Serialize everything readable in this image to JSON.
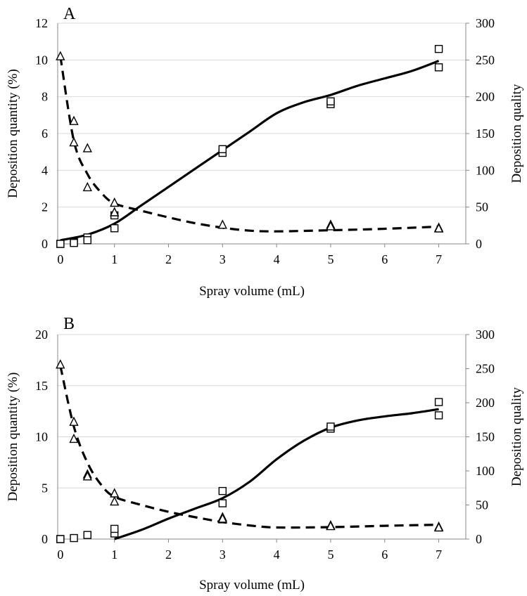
{
  "chart_data": [
    {
      "type": "scatter",
      "panel_label": "A",
      "xlabel": "Spray volume (mL)",
      "ylabel": "Deposition quantity (%)",
      "y2label": "Deposition quality",
      "xlim": [
        -0.05,
        7.5
      ],
      "ylim": [
        0,
        12
      ],
      "y2lim": [
        0,
        300
      ],
      "xticks": [
        "0",
        "1",
        "2",
        "3",
        "4",
        "5",
        "6",
        "7"
      ],
      "yticks": [
        "0",
        "2",
        "4",
        "6",
        "8",
        "10",
        "12"
      ],
      "y2ticks": [
        "0",
        "50",
        "100",
        "150",
        "200",
        "250",
        "300"
      ],
      "grid": true,
      "series": [
        {
          "marker": "square",
          "axis": "left",
          "color": "#000000",
          "points": [
            [
              0,
              0.0
            ],
            [
              0,
              0.0
            ],
            [
              0.25,
              0.1
            ],
            [
              0.25,
              0.05
            ],
            [
              0.5,
              0.35
            ],
            [
              0.5,
              0.2
            ],
            [
              1,
              0.85
            ],
            [
              1,
              1.55
            ],
            [
              3,
              4.95
            ],
            [
              3,
              5.15
            ],
            [
              5,
              7.6
            ],
            [
              5,
              7.75
            ],
            [
              7,
              9.6
            ],
            [
              7,
              10.6
            ]
          ]
        },
        {
          "marker": "triangle",
          "axis": "right",
          "color": "#000000",
          "points": [
            [
              0,
              255
            ],
            [
              0.25,
              167
            ],
            [
              0.25,
              138
            ],
            [
              0.5,
              130
            ],
            [
              0.5,
              77
            ],
            [
              1,
              56
            ],
            [
              1,
              43
            ],
            [
              3,
              26
            ],
            [
              5,
              26
            ],
            [
              5,
              24
            ],
            [
              7,
              22
            ],
            [
              7,
              21
            ]
          ]
        },
        {
          "style": "solid-fit",
          "axis": "left",
          "x": [
            0,
            0.5,
            1,
            1.5,
            2,
            2.5,
            3,
            3.5,
            4,
            4.5,
            5,
            5.5,
            6,
            6.5,
            7
          ],
          "values": [
            0.2,
            0.5,
            1.1,
            2.1,
            3.1,
            4.1,
            5.1,
            6.1,
            7.1,
            7.7,
            8.1,
            8.6,
            9.0,
            9.4,
            9.95
          ]
        },
        {
          "style": "dashed-fit",
          "axis": "right",
          "x": [
            0,
            0.25,
            0.5,
            0.75,
            1,
            1.5,
            2,
            2.5,
            3,
            3.5,
            4,
            5,
            6,
            7
          ],
          "values": [
            255,
            140,
            95,
            70,
            55,
            45,
            36,
            28,
            22,
            18,
            17,
            18.5,
            20.5,
            23.5
          ]
        }
      ]
    },
    {
      "type": "scatter",
      "panel_label": "B",
      "xlabel": "Spray volume (mL)",
      "ylabel": "Deposition quantity (%)",
      "y2label": "Deposition quality",
      "xlim": [
        -0.05,
        7.5
      ],
      "ylim": [
        0,
        20
      ],
      "y2lim": [
        0,
        300
      ],
      "xticks": [
        "0",
        "1",
        "2",
        "3",
        "4",
        "5",
        "6",
        "7"
      ],
      "yticks": [
        "0",
        "5",
        "10",
        "15",
        "20"
      ],
      "y2ticks": [
        "0",
        "50",
        "100",
        "150",
        "200",
        "250",
        "300"
      ],
      "grid": true,
      "series": [
        {
          "marker": "square",
          "axis": "left",
          "color": "#000000",
          "points": [
            [
              0,
              0.0
            ],
            [
              0,
              0.0
            ],
            [
              0.25,
              0.1
            ],
            [
              0.5,
              0.4
            ],
            [
              1,
              0.55
            ],
            [
              1,
              1.0
            ],
            [
              3,
              3.5
            ],
            [
              3,
              4.7
            ],
            [
              5,
              10.8
            ],
            [
              5,
              11.0
            ],
            [
              7,
              12.1
            ],
            [
              7,
              13.4
            ]
          ]
        },
        {
          "marker": "triangle",
          "axis": "right",
          "color": "#000000",
          "points": [
            [
              0,
              256
            ],
            [
              0.25,
              172
            ],
            [
              0.5,
              95
            ],
            [
              1,
              55
            ],
            [
              3,
              32
            ],
            [
              3,
              29
            ],
            [
              5,
              20
            ],
            [
              7,
              18
            ]
          ]
        },
        {
          "marker": "triangle",
          "axis": "right",
          "color": "#4f81bd",
          "points": [
            [
              0.25,
              147
            ],
            [
              0.5,
              92
            ],
            [
              1,
              67
            ],
            [
              3,
              30
            ],
            [
              5,
              19
            ],
            [
              7,
              17
            ]
          ]
        },
        {
          "style": "solid-fit",
          "axis": "left",
          "x": [
            1,
            1.5,
            2,
            2.5,
            3,
            3.5,
            4,
            4.5,
            5,
            5.5,
            6,
            6.5,
            7
          ],
          "values": [
            0.0,
            0.9,
            2.0,
            3.0,
            4.0,
            5.6,
            7.8,
            9.6,
            10.9,
            11.6,
            12.0,
            12.3,
            12.7
          ]
        },
        {
          "style": "dashed-fit",
          "axis": "right",
          "x": [
            0,
            0.25,
            0.5,
            0.75,
            1,
            1.5,
            2,
            2.5,
            3,
            3.5,
            4,
            5,
            6,
            7
          ],
          "values": [
            254,
            165,
            112,
            80,
            62,
            50,
            40,
            32,
            25,
            20,
            17,
            17.5,
            19.5,
            21
          ]
        }
      ]
    }
  ]
}
